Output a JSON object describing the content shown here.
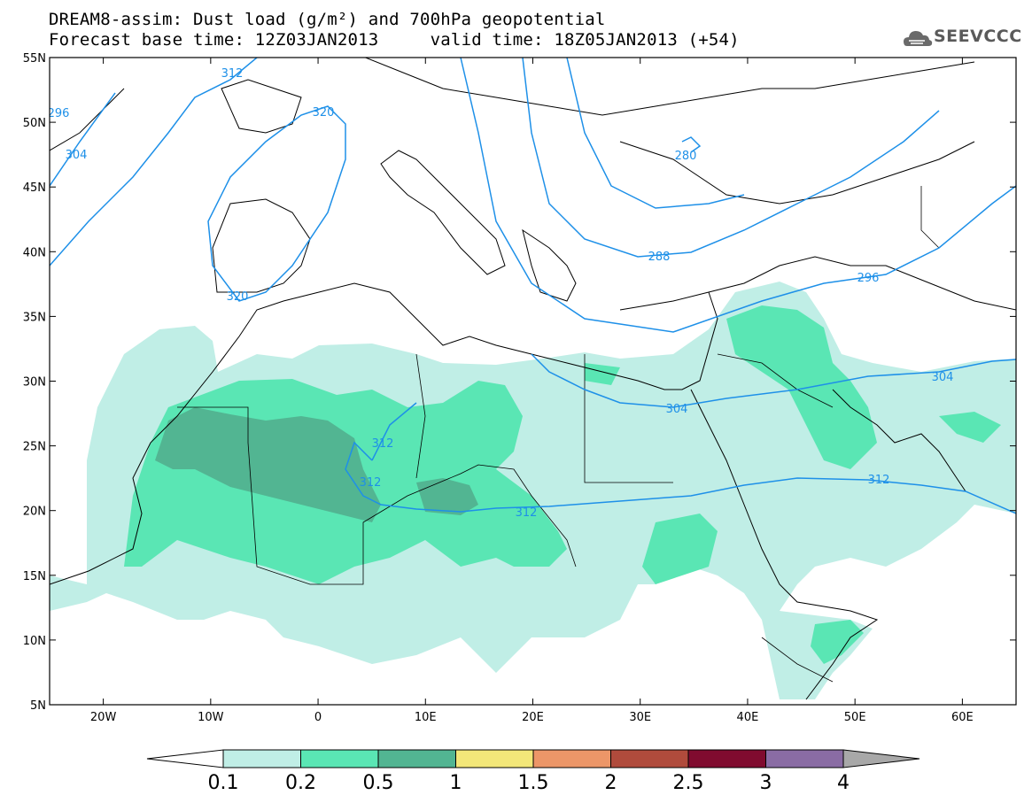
{
  "header": {
    "title_line1": "DREAM8-assim: Dust load (g/m²) and 700hPa geopotential",
    "base_time": "Forecast base time: 12Z03JAN2013",
    "valid_time": "valid time: 18Z05JAN2013 (+54)",
    "logo_text": "SEEVCCC",
    "logo_icon": "cloud-logo-icon"
  },
  "map": {
    "lat_labels": [
      "55N",
      "50N",
      "45N",
      "40N",
      "35N",
      "30N",
      "25N",
      "20N",
      "15N",
      "10N",
      "5N"
    ],
    "lon_labels": [
      "20W",
      "10W",
      "0",
      "10E",
      "20E",
      "30E",
      "40E",
      "50E",
      "60E"
    ],
    "extent": {
      "lon_min": -25,
      "lon_max": 65,
      "lat_min": 5,
      "lat_max": 55
    },
    "contour_color": "#1e90e8",
    "contour_labels": [
      "312",
      "320",
      "296",
      "304",
      "320",
      "280",
      "288",
      "296",
      "304",
      "304",
      "312",
      "312",
      "312",
      "312"
    ]
  },
  "colorbar": {
    "ticks": [
      "0.1",
      "0.2",
      "0.5",
      "1",
      "1.5",
      "2",
      "2.5",
      "3",
      "4"
    ],
    "colors": [
      "#c0eee6",
      "#5ae6b4",
      "#52b592",
      "#f3e779",
      "#ec9668",
      "#b04b3c",
      "#800b2f",
      "#8a6ca4",
      "#a8a8a8"
    ]
  }
}
